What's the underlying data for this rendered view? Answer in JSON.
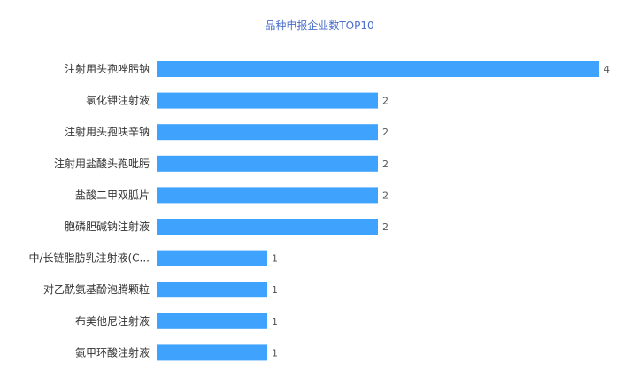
{
  "chart_data": {
    "type": "bar",
    "orientation": "horizontal",
    "title": "品种申报企业数TOP10",
    "categories": [
      "注射用头孢唑肟钠",
      "氯化钾注射液",
      "注射用头孢呋辛钠",
      "注射用盐酸头孢吡肟",
      "盐酸二甲双胍片",
      "胞磷胆碱钠注射液",
      "中/长链脂肪乳注射液(C...",
      "对乙酰氨基酚泡腾颗粒",
      "布美他尼注射液",
      "氨甲环酸注射液"
    ],
    "values": [
      4,
      2,
      2,
      2,
      2,
      2,
      1,
      1,
      1,
      1
    ],
    "xlim": [
      0,
      4
    ],
    "grid": false,
    "legend": "none",
    "bar_color": "#3fa2fc"
  }
}
